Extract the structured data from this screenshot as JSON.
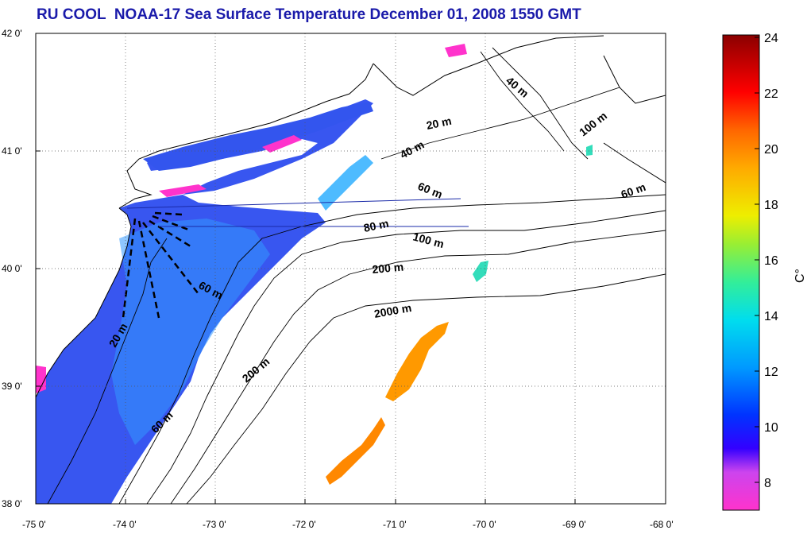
{
  "title": "RU COOL  NOAA-17 Sea Surface Temperature December 01, 2008 1550 GMT",
  "map": {
    "lon_range": [
      -75,
      -68
    ],
    "lat_range": [
      38,
      42
    ],
    "x_tick_labels": [
      "-75 0'",
      "-74 0'",
      "-73 0'",
      "-72 0'",
      "-71 0'",
      "-70 0'",
      "-69 0'",
      "-68 0'"
    ],
    "y_tick_labels": [
      "42 0'",
      "41 0'",
      "40 0'",
      "39 0'",
      "38 0'"
    ],
    "grid": "dotted",
    "contour_labels": [
      {
        "text": "20 m"
      },
      {
        "text": "40 m"
      },
      {
        "text": "40 m"
      },
      {
        "text": "60 m"
      },
      {
        "text": "100 m"
      },
      {
        "text": "60 m"
      },
      {
        "text": "80 m"
      },
      {
        "text": "100 m"
      },
      {
        "text": "200 m"
      },
      {
        "text": "60 m"
      },
      {
        "text": "2000 m"
      },
      {
        "text": "20 m"
      },
      {
        "text": "200 m"
      },
      {
        "text": "60 m"
      }
    ]
  },
  "colorbar": {
    "tick_labels": [
      "24",
      "22",
      "20",
      "18",
      "16",
      "14",
      "12",
      "10",
      "8"
    ],
    "unit_label": "C°",
    "range": [
      7,
      24
    ]
  },
  "colors": {
    "title": "#1a1aaa",
    "land": "#ffffff",
    "contours": "#000000"
  }
}
